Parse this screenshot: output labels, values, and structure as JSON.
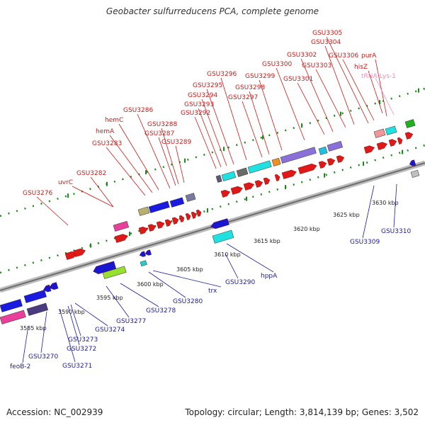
{
  "title": "Geobacter sulfurreducens PCA, complete genome",
  "footer": {
    "accession": "Accession: NC_002939",
    "summary": "Topology: circular; Length: 3,814,139 bp; Genes: 3,502"
  },
  "colors": {
    "forward_label": "#d01818",
    "reverse_label": "#1a1aa8",
    "rna_label": "#f08cc0",
    "backbone": "#9a9a9a",
    "dots": "#1e8a1e"
  },
  "scale_ticks": [
    "3585 kbp",
    "3590 kbp",
    "3595 kbp",
    "3600 kbp",
    "3605 kbp",
    "3610 kbp",
    "3615 kbp",
    "3620 kbp",
    "3625 kbp",
    "3630 kbp"
  ],
  "forward_labels": [
    "GSU3276",
    "GSU3282",
    "uvrC",
    "GSU3283",
    "hemA",
    "hemC",
    "GSU3286",
    "GSU3287",
    "GSU3288",
    "GSU3289",
    "GSU3292",
    "GSU3293",
    "GSU3294",
    "GSU3295",
    "GSU3296",
    "GSU3297",
    "GSU3298",
    "GSU3299",
    "GSU3300",
    "GSU3301",
    "GSU3302",
    "GSU3303",
    "GSU3304",
    "GSU3305",
    "GSU3306",
    "purA",
    "hisZ"
  ],
  "rna_labels": [
    "tRNA-Lys-1"
  ],
  "reverse_labels": [
    "feoB-2",
    "GSU3270",
    "GSU3271",
    "GSU3272",
    "GSU3273",
    "GSU3274",
    "GSU3277",
    "GSU3278",
    "GSU3280",
    "trx",
    "GSU3290",
    "hppA",
    "GSU3309",
    "GSU3310"
  ]
}
